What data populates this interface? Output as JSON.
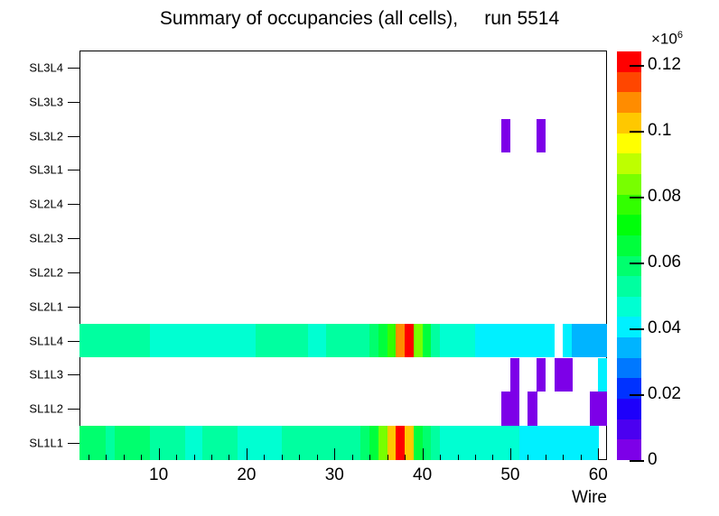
{
  "title": "Summary of occupancies (all cells),     run 5514",
  "xlabel": "Wire",
  "x_tick_labels": [
    "10",
    "20",
    "30",
    "40",
    "50",
    "60"
  ],
  "colorbar": {
    "exponent_base": "×10",
    "exponent_power": "6",
    "zmax": 0.124,
    "ticks": [
      {
        "label": "0",
        "value": 0
      },
      {
        "label": "0.02",
        "value": 0.02
      },
      {
        "label": "0.04",
        "value": 0.04
      },
      {
        "label": "0.06",
        "value": 0.06
      },
      {
        "label": "0.08",
        "value": 0.08
      },
      {
        "label": "0.1",
        "value": 0.1
      },
      {
        "label": "0.12",
        "value": 0.12
      }
    ],
    "palette_bottom_to_top": [
      "#7d00e8",
      "#4b00f0",
      "#1e00fa",
      "#0032ff",
      "#0078ff",
      "#00b4ff",
      "#00f0ff",
      "#00ffd2",
      "#00ffa0",
      "#00ff6e",
      "#00ff3c",
      "#00ff0a",
      "#32ff00",
      "#78ff00",
      "#beff00",
      "#ffff00",
      "#ffc800",
      "#ff8c00",
      "#ff4600",
      "#ff0000"
    ]
  },
  "chart_data": {
    "type": "heatmap",
    "title": "Summary of occupancies (all cells),     run 5514",
    "xlabel": "Wire",
    "x_range": [
      1,
      61
    ],
    "n_wires": 60,
    "x_major_ticks": [
      10,
      20,
      30,
      40,
      50,
      60
    ],
    "z_units": "×10^6",
    "zmax": 0.124,
    "legend_position": "right-color-scale",
    "grid": false,
    "rows_bottom_to_top": [
      {
        "name": "SL1L1",
        "values": [
          0.058,
          0.058,
          0.058,
          0.052,
          0.058,
          0.058,
          0.058,
          0.058,
          0.052,
          0.051,
          0.051,
          0.051,
          0.046,
          0.046,
          0.051,
          0.051,
          0.051,
          0.051,
          0.046,
          0.046,
          0.046,
          0.046,
          0.046,
          0.052,
          0.052,
          0.052,
          0.052,
          0.052,
          0.052,
          0.052,
          0.052,
          0.052,
          0.058,
          0.064,
          0.084,
          0.103,
          0.121,
          0.103,
          0.066,
          0.058,
          0.052,
          0.046,
          0.046,
          0.046,
          0.046,
          0.046,
          0.046,
          0.046,
          0.046,
          0.046,
          0.04,
          0.04,
          0.04,
          0.04,
          0.04,
          0.04,
          0.04,
          0.04,
          0.04,
          0
        ]
      },
      {
        "name": "SL1L2",
        "values": [
          0,
          0,
          0,
          0,
          0,
          0,
          0,
          0,
          0,
          0,
          0,
          0,
          0,
          0,
          0,
          0,
          0,
          0,
          0,
          0,
          0,
          0,
          0,
          0,
          0,
          0,
          0,
          0,
          0,
          0,
          0,
          0,
          0,
          0,
          0,
          0,
          0,
          0,
          0,
          0,
          0,
          0,
          0,
          0,
          0,
          0,
          0,
          0,
          0.005,
          0.005,
          0,
          0.005,
          0,
          0,
          0,
          0,
          0,
          0,
          0.005,
          0.005
        ]
      },
      {
        "name": "SL1L3",
        "values": [
          0,
          0,
          0,
          0,
          0,
          0,
          0,
          0,
          0,
          0,
          0,
          0,
          0,
          0,
          0,
          0,
          0,
          0,
          0,
          0,
          0,
          0,
          0,
          0,
          0,
          0,
          0,
          0,
          0,
          0,
          0,
          0,
          0,
          0,
          0,
          0,
          0,
          0,
          0,
          0,
          0,
          0,
          0,
          0,
          0,
          0,
          0,
          0,
          0,
          0.005,
          0,
          0,
          0.005,
          0,
          0.005,
          0.005,
          0,
          0,
          0,
          0.04
        ]
      },
      {
        "name": "SL1L4",
        "values": [
          0.054,
          0.054,
          0.054,
          0.054,
          0.054,
          0.054,
          0.054,
          0.054,
          0.046,
          0.046,
          0.046,
          0.046,
          0.046,
          0.046,
          0.046,
          0.046,
          0.046,
          0.046,
          0.046,
          0.046,
          0.054,
          0.054,
          0.054,
          0.054,
          0.054,
          0.054,
          0.046,
          0.046,
          0.052,
          0.052,
          0.052,
          0.052,
          0.052,
          0.058,
          0.064,
          0.076,
          0.108,
          0.12,
          0.084,
          0.064,
          0.052,
          0.046,
          0.046,
          0.046,
          0.046,
          0.04,
          0.04,
          0.04,
          0.04,
          0.04,
          0.04,
          0.04,
          0.04,
          0.04,
          0,
          0.04,
          0.034,
          0.034,
          0.034,
          0.034
        ]
      },
      {
        "name": "SL2L1",
        "values": [
          0,
          0,
          0,
          0,
          0,
          0,
          0,
          0,
          0,
          0,
          0,
          0,
          0,
          0,
          0,
          0,
          0,
          0,
          0,
          0,
          0,
          0,
          0,
          0,
          0,
          0,
          0,
          0,
          0,
          0,
          0,
          0,
          0,
          0,
          0,
          0,
          0,
          0,
          0,
          0,
          0,
          0,
          0,
          0,
          0,
          0,
          0,
          0,
          0,
          0,
          0,
          0,
          0,
          0,
          0,
          0,
          0,
          0,
          0,
          0
        ]
      },
      {
        "name": "SL2L2",
        "values": [
          0,
          0,
          0,
          0,
          0,
          0,
          0,
          0,
          0,
          0,
          0,
          0,
          0,
          0,
          0,
          0,
          0,
          0,
          0,
          0,
          0,
          0,
          0,
          0,
          0,
          0,
          0,
          0,
          0,
          0,
          0,
          0,
          0,
          0,
          0,
          0,
          0,
          0,
          0,
          0,
          0,
          0,
          0,
          0,
          0,
          0,
          0,
          0,
          0,
          0,
          0,
          0,
          0,
          0,
          0,
          0,
          0,
          0,
          0,
          0
        ]
      },
      {
        "name": "SL2L3",
        "values": [
          0,
          0,
          0,
          0,
          0,
          0,
          0,
          0,
          0,
          0,
          0,
          0,
          0,
          0,
          0,
          0,
          0,
          0,
          0,
          0,
          0,
          0,
          0,
          0,
          0,
          0,
          0,
          0,
          0,
          0,
          0,
          0,
          0,
          0,
          0,
          0,
          0,
          0,
          0,
          0,
          0,
          0,
          0,
          0,
          0,
          0,
          0,
          0,
          0,
          0,
          0,
          0,
          0,
          0,
          0,
          0,
          0,
          0,
          0,
          0
        ]
      },
      {
        "name": "SL2L4",
        "values": [
          0,
          0,
          0,
          0,
          0,
          0,
          0,
          0,
          0,
          0,
          0,
          0,
          0,
          0,
          0,
          0,
          0,
          0,
          0,
          0,
          0,
          0,
          0,
          0,
          0,
          0,
          0,
          0,
          0,
          0,
          0,
          0,
          0,
          0,
          0,
          0,
          0,
          0,
          0,
          0,
          0,
          0,
          0,
          0,
          0,
          0,
          0,
          0,
          0,
          0,
          0,
          0,
          0,
          0,
          0,
          0,
          0,
          0,
          0,
          0
        ]
      },
      {
        "name": "SL3L1",
        "values": [
          0,
          0,
          0,
          0,
          0,
          0,
          0,
          0,
          0,
          0,
          0,
          0,
          0,
          0,
          0,
          0,
          0,
          0,
          0,
          0,
          0,
          0,
          0,
          0,
          0,
          0,
          0,
          0,
          0,
          0,
          0,
          0,
          0,
          0,
          0,
          0,
          0,
          0,
          0,
          0,
          0,
          0,
          0,
          0,
          0,
          0,
          0,
          0,
          0,
          0,
          0,
          0,
          0,
          0,
          0,
          0,
          0,
          0,
          0,
          0
        ]
      },
      {
        "name": "SL3L2",
        "values": [
          0,
          0,
          0,
          0,
          0,
          0,
          0,
          0,
          0,
          0,
          0,
          0,
          0,
          0,
          0,
          0,
          0,
          0,
          0,
          0,
          0,
          0,
          0,
          0,
          0,
          0,
          0,
          0,
          0,
          0,
          0,
          0,
          0,
          0,
          0,
          0,
          0,
          0,
          0,
          0,
          0,
          0,
          0,
          0,
          0,
          0,
          0,
          0,
          0.005,
          0,
          0,
          0,
          0.005,
          0,
          0,
          0,
          0,
          0,
          0,
          0
        ]
      },
      {
        "name": "SL3L3",
        "values": [
          0,
          0,
          0,
          0,
          0,
          0,
          0,
          0,
          0,
          0,
          0,
          0,
          0,
          0,
          0,
          0,
          0,
          0,
          0,
          0,
          0,
          0,
          0,
          0,
          0,
          0,
          0,
          0,
          0,
          0,
          0,
          0,
          0,
          0,
          0,
          0,
          0,
          0,
          0,
          0,
          0,
          0,
          0,
          0,
          0,
          0,
          0,
          0,
          0,
          0,
          0,
          0,
          0,
          0,
          0,
          0,
          0,
          0,
          0,
          0
        ]
      },
      {
        "name": "SL3L4",
        "values": [
          0,
          0,
          0,
          0,
          0,
          0,
          0,
          0,
          0,
          0,
          0,
          0,
          0,
          0,
          0,
          0,
          0,
          0,
          0,
          0,
          0,
          0,
          0,
          0,
          0,
          0,
          0,
          0,
          0,
          0,
          0,
          0,
          0,
          0,
          0,
          0,
          0,
          0,
          0,
          0,
          0,
          0,
          0,
          0,
          0,
          0,
          0,
          0,
          0,
          0,
          0,
          0,
          0,
          0,
          0,
          0,
          0,
          0,
          0,
          0
        ]
      }
    ]
  }
}
